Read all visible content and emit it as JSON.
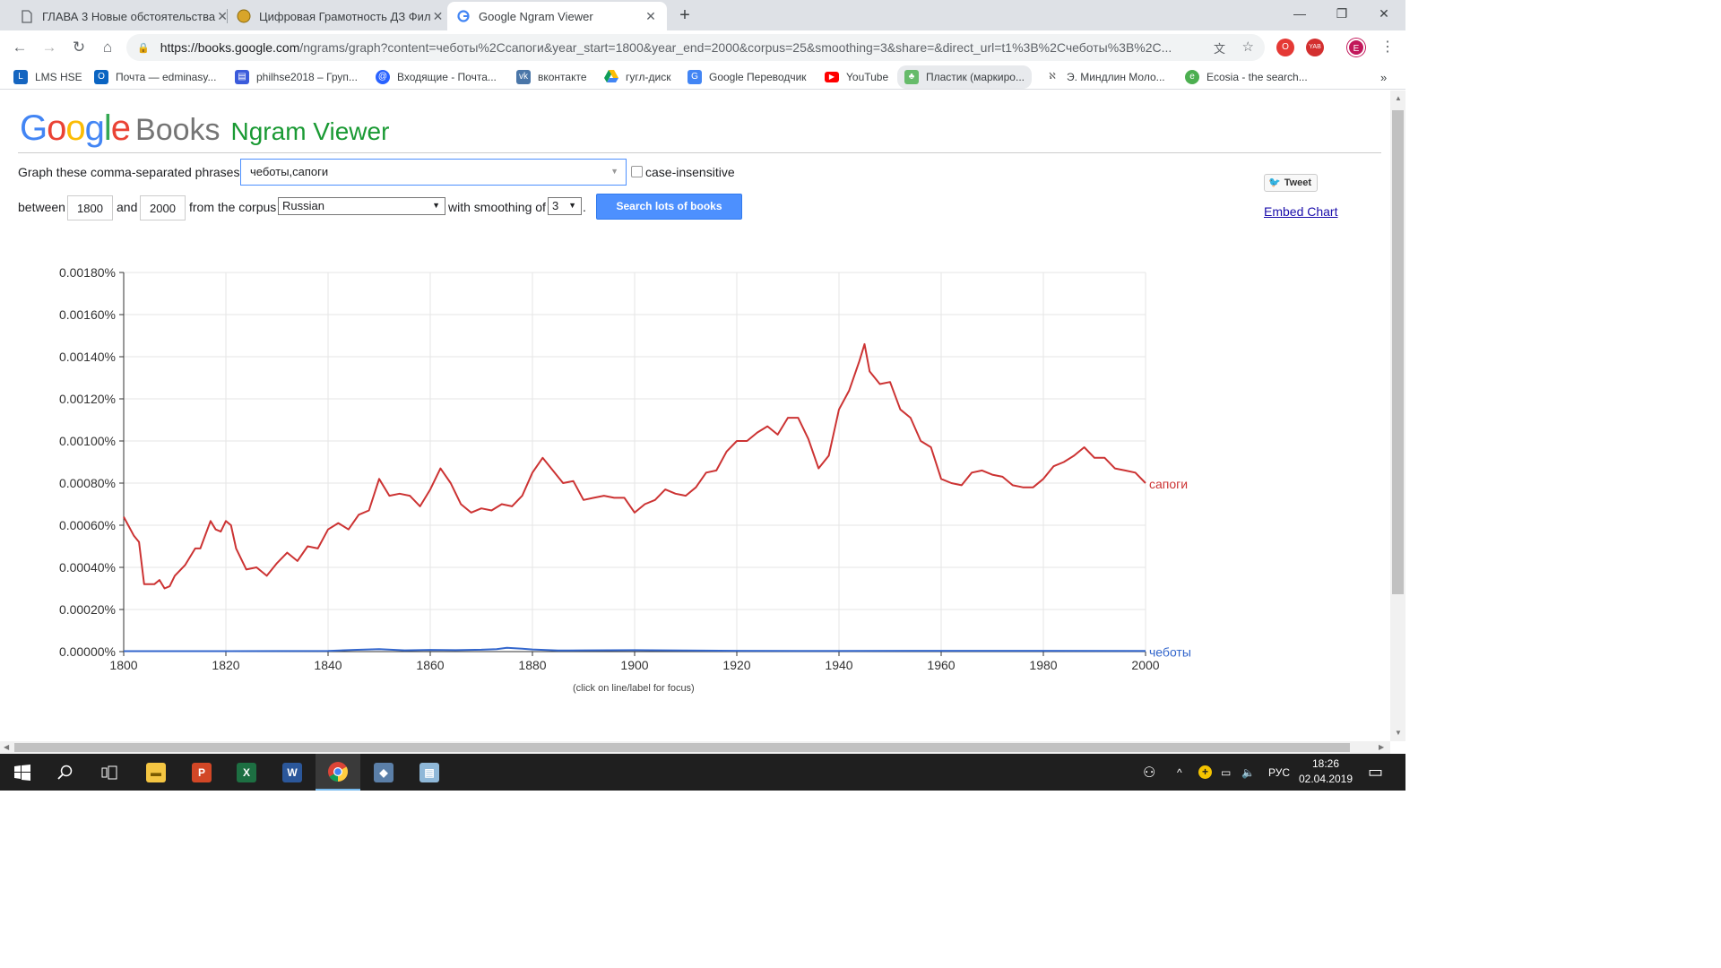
{
  "browser": {
    "tabs": [
      {
        "title": "ГЛАВА 3 Новые обстоятельства",
        "icon": "document-icon"
      },
      {
        "title": "Цифровая Грамотность ДЗ Фил",
        "icon": "hse-logo-icon"
      },
      {
        "title": "Google Ngram Viewer",
        "icon": "google-g-icon"
      }
    ],
    "url_host": "https://books.google.com",
    "url_path": "/ngrams/graph?content=чеботы%2Ссапоги&year_start=1800&year_end=2000&corpus=25&smoothing=3&share=&direct_url=t1%3B%2Сч​еботы%3B%2C...",
    "avatar_letter": "E",
    "ext_badge": "YAB",
    "bookmarks": [
      {
        "label": "LMS HSE",
        "icon": "lms-icon",
        "color": "#1565c0"
      },
      {
        "label": "Почта — edminasy...",
        "icon": "outlook-icon",
        "color": "#0a64c2"
      },
      {
        "label": "philhse2018 – Груп...",
        "icon": "groups-icon",
        "color": "#3b5bdb"
      },
      {
        "label": "Входящие - Почта...",
        "icon": "mail-icon",
        "color": "#2962ff"
      },
      {
        "label": "вконтакте",
        "icon": "vk-icon",
        "color": "#4a76a8"
      },
      {
        "label": "гугл-диск",
        "icon": "drive-icon",
        "color": "#0f9d58"
      },
      {
        "label": "Google Переводчик",
        "icon": "translate-icon",
        "color": "#4285f4"
      },
      {
        "label": "YouTube",
        "icon": "youtube-icon",
        "color": "#ff0000"
      },
      {
        "label": "Пластик (маркиро...",
        "icon": "bird-icon",
        "color": "#66bb6a"
      },
      {
        "label": "Э. Миндлин Моло...",
        "icon": "page-icon",
        "color": "#777777"
      },
      {
        "label": "Ecosia - the search...",
        "icon": "ecosia-icon",
        "color": "#4caf50"
      }
    ]
  },
  "ngram": {
    "logo_google": "Google",
    "logo_books": "Books",
    "logo_viewer": "Ngram Viewer",
    "phrases_label": "Graph these comma-separated phrases:",
    "phrases_value": "чеботы,сапоги",
    "case_label": "case-insensitive",
    "between_label": "between",
    "year_start": "1800",
    "and_label": "and",
    "year_end": "2000",
    "corpus_label": "from the corpus",
    "corpus_value": "Russian",
    "smoothing_label": "with smoothing of",
    "smoothing_value": "3",
    "period": ".",
    "search_button": "Search lots of books",
    "tweet_label": "Tweet",
    "embed_label": "Embed Chart",
    "hint": "(click on line/label for focus)"
  },
  "chart_data": {
    "type": "line",
    "x_range": [
      1800,
      2000
    ],
    "ylim": [
      0,
      0.0018
    ],
    "x_ticks": [
      "1800",
      "1820",
      "1840",
      "1860",
      "1880",
      "1900",
      "1920",
      "1940",
      "1960",
      "1980",
      "2000"
    ],
    "y_ticks": [
      "0.00000%",
      "0.00020%",
      "0.00040%",
      "0.00060%",
      "0.00080%",
      "0.00100%",
      "0.00120%",
      "0.00140%",
      "0.00160%",
      "0.00180%"
    ],
    "grid": true,
    "series": [
      {
        "name": "сапоги",
        "color": "#cc3333",
        "x": [
          1800,
          1802,
          1803,
          1804,
          1805,
          1806,
          1807,
          1808,
          1809,
          1810,
          1812,
          1814,
          1815,
          1817,
          1818,
          1819,
          1820,
          1821,
          1822,
          1824,
          1826,
          1828,
          1830,
          1832,
          1834,
          1836,
          1838,
          1840,
          1842,
          1844,
          1846,
          1848,
          1850,
          1852,
          1854,
          1856,
          1858,
          1860,
          1862,
          1864,
          1866,
          1868,
          1870,
          1872,
          1874,
          1876,
          1878,
          1880,
          1882,
          1884,
          1886,
          1888,
          1890,
          1892,
          1894,
          1896,
          1898,
          1900,
          1902,
          1904,
          1906,
          1908,
          1910,
          1912,
          1914,
          1916,
          1918,
          1920,
          1922,
          1924,
          1926,
          1928,
          1930,
          1932,
          1934,
          1936,
          1938,
          1940,
          1942,
          1944,
          1945,
          1946,
          1948,
          1950,
          1952,
          1954,
          1956,
          1958,
          1960,
          1962,
          1964,
          1966,
          1968,
          1970,
          1972,
          1974,
          1976,
          1978,
          1980,
          1982,
          1984,
          1986,
          1988,
          1990,
          1992,
          1994,
          1996,
          1998,
          2000
        ],
        "values": [
          0.00064,
          0.00055,
          0.00052,
          0.00032,
          0.00032,
          0.00032,
          0.00034,
          0.0003,
          0.00031,
          0.00036,
          0.00041,
          0.00049,
          0.00049,
          0.00062,
          0.00058,
          0.00057,
          0.00062,
          0.0006,
          0.00049,
          0.00039,
          0.0004,
          0.00036,
          0.00042,
          0.00047,
          0.00043,
          0.0005,
          0.00049,
          0.00058,
          0.00061,
          0.00058,
          0.00065,
          0.00067,
          0.00082,
          0.00074,
          0.00075,
          0.00074,
          0.00069,
          0.00077,
          0.00087,
          0.0008,
          0.0007,
          0.00066,
          0.00068,
          0.00067,
          0.0007,
          0.00069,
          0.00074,
          0.00085,
          0.00092,
          0.00086,
          0.0008,
          0.00081,
          0.00072,
          0.00073,
          0.00074,
          0.00073,
          0.00073,
          0.00066,
          0.0007,
          0.00072,
          0.00077,
          0.00075,
          0.00074,
          0.00078,
          0.00085,
          0.00086,
          0.00095,
          0.001,
          0.001,
          0.00104,
          0.00107,
          0.00103,
          0.00111,
          0.00111,
          0.00101,
          0.00087,
          0.00093,
          0.00115,
          0.00124,
          0.00138,
          0.00146,
          0.00133,
          0.00127,
          0.00128,
          0.00115,
          0.00111,
          0.001,
          0.00097,
          0.00082,
          0.0008,
          0.00079,
          0.00085,
          0.00086,
          0.00084,
          0.00083,
          0.00079,
          0.00078,
          0.00078,
          0.00082,
          0.00088,
          0.0009,
          0.00093,
          0.00097,
          0.00092,
          0.00092,
          0.00087,
          0.00086,
          0.00085,
          0.0008
        ]
      },
      {
        "name": "чеботы",
        "color": "#3366cc",
        "x": [
          1800,
          1820,
          1840,
          1845,
          1850,
          1855,
          1860,
          1865,
          1870,
          1873,
          1875,
          1878,
          1880,
          1885,
          1890,
          1900,
          1910,
          1920,
          1940,
          1960,
          1980,
          2000
        ],
        "values": [
          2e-06,
          2e-06,
          3e-06,
          8e-06,
          1.2e-05,
          6e-06,
          8e-06,
          7e-06,
          9e-06,
          1.2e-05,
          1.8e-05,
          1.4e-05,
          1e-05,
          5e-06,
          6e-06,
          7e-06,
          5e-06,
          4e-06,
          3e-06,
          4e-06,
          4e-06,
          3e-06
        ]
      }
    ]
  },
  "taskbar": {
    "apps": [
      {
        "name": "start-icon"
      },
      {
        "name": "search-icon"
      },
      {
        "name": "task-view-icon"
      },
      {
        "name": "file-explorer-icon"
      },
      {
        "name": "powerpoint-icon"
      },
      {
        "name": "excel-icon"
      },
      {
        "name": "word-icon"
      },
      {
        "name": "chrome-icon"
      },
      {
        "name": "app-icon"
      },
      {
        "name": "notepad-icon"
      }
    ],
    "lang": "РУС",
    "time": "18:26",
    "date": "02.04.2019"
  }
}
